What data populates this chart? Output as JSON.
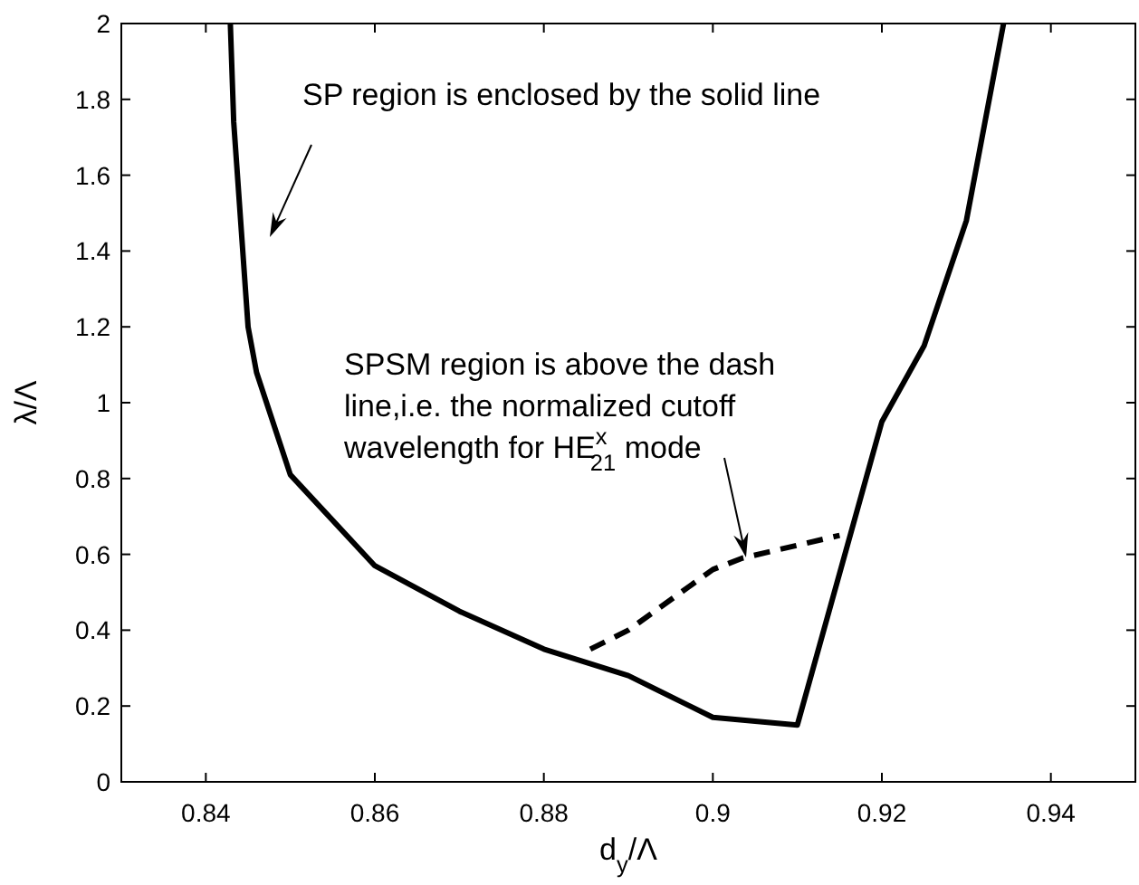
{
  "chart_data": {
    "type": "line",
    "xlabel": "d$_{y}$/Λ",
    "ylabel": "λ/Λ",
    "xlim": [
      0.83,
      0.95
    ],
    "xticks": [
      0.84,
      0.86,
      0.88,
      {
        "value": 0.9,
        "label": "0.9"
      },
      0.92,
      0.94
    ],
    "ylim": [
      0,
      2
    ],
    "yticks": [
      0,
      0.2,
      0.4,
      0.6,
      0.8,
      1,
      1.2,
      1.4,
      1.6,
      1.8,
      2
    ],
    "grid": false,
    "marker": "none",
    "series": [
      {
        "color": "#000000",
        "line_style": "solid",
        "x": [
          0.8429,
          0.8433,
          0.845,
          0.846,
          0.85,
          0.86,
          0.87,
          0.88,
          0.89,
          0.9,
          0.91,
          0.92,
          0.925,
          0.93,
          0.9344
        ],
        "values": [
          2,
          1.74,
          1.2,
          1.08,
          0.81,
          0.57,
          0.45,
          0.35,
          0.28,
          0.17,
          0.15,
          0.95,
          1.15,
          1.48,
          2
        ]
      },
      {
        "color": "#000000",
        "line_style": "dashed",
        "x": [
          0.8855,
          0.89,
          0.9,
          0.9035,
          0.915
        ],
        "values": [
          0.35,
          0.4,
          0.56,
          0.59,
          0.65
        ]
      }
    ],
    "annotations": [
      "SP region is enclosed by the solid line",
      "SPSM region is above the dash\nline,i.e. the normalized cutoff\nwavelength for HE$^{x}$$_{21}$ mode"
    ]
  }
}
